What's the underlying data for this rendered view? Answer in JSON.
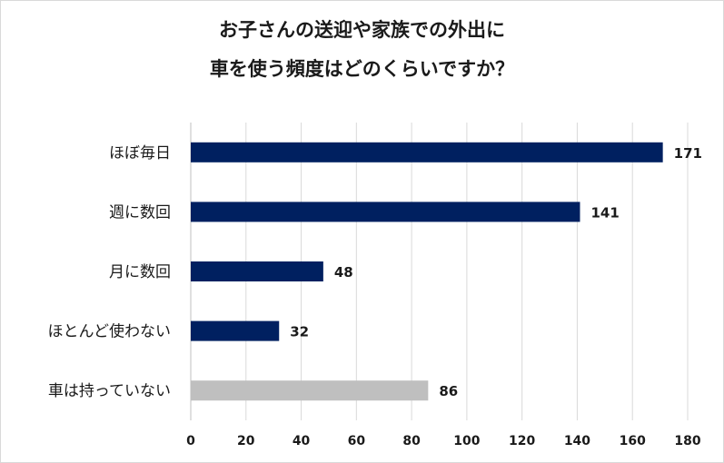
{
  "chart_data": {
    "type": "bar",
    "orientation": "horizontal",
    "title": [
      "お子さんの送迎や家族での外出に",
      "車を使う頻度はどのくらいですか？"
    ],
    "categories": [
      "ほぼ毎日",
      "週に数回",
      "月に数回",
      "ほとんど使わない",
      "車は持っていない"
    ],
    "values": [
      171,
      141,
      48,
      32,
      86
    ],
    "bar_colors": [
      "#002060",
      "#002060",
      "#002060",
      "#002060",
      "#bfbfbf"
    ],
    "xlim": [
      0,
      180
    ],
    "xticks": [
      0,
      20,
      40,
      60,
      80,
      100,
      120,
      140,
      160,
      180
    ],
    "grid": true,
    "legend": "none",
    "xlabel": "",
    "ylabel": ""
  }
}
